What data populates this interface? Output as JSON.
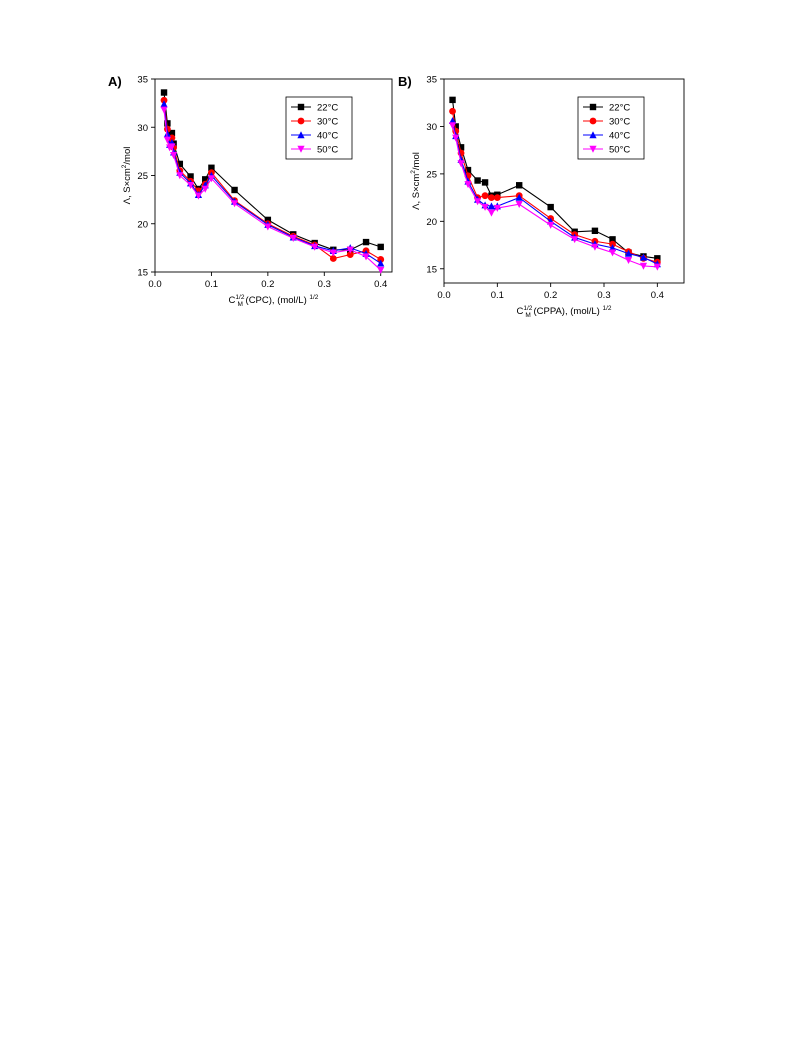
{
  "figure": {
    "panels": [
      {
        "letter": "A)"
      },
      {
        "letter": "B)"
      }
    ]
  },
  "chart_data": [
    {
      "type": "line",
      "panel_label": "A)",
      "xlabel": {
        "main": "C",
        "sub": "M",
        "sup": "1/2",
        "rest": " (CPC), (mol/L) ",
        "rest_sup": "1/2"
      },
      "ylabel": {
        "main": "Λ, S×cm",
        "sup": "2",
        "rest": "/mol"
      },
      "xlim": [
        0.0,
        0.42
      ],
      "ylim": [
        15,
        35
      ],
      "xticks": [
        0.0,
        0.1,
        0.2,
        0.3,
        0.4
      ],
      "xtick_labels": [
        "0.0",
        "0.1",
        "0.2",
        "0.3",
        "0.4"
      ],
      "yticks": [
        15,
        20,
        25,
        30,
        35
      ],
      "ytick_labels": [
        "15",
        "20",
        "25",
        "30",
        "35"
      ],
      "legend_position": "top-right",
      "grid": false,
      "x": [
        0.016,
        0.022,
        0.026,
        0.03,
        0.033,
        0.044,
        0.063,
        0.077,
        0.089,
        0.1,
        0.141,
        0.2,
        0.245,
        0.283,
        0.316,
        0.346,
        0.374,
        0.4
      ],
      "series": [
        {
          "name": "22°C",
          "color": "#000000",
          "marker": "square",
          "values": [
            33.6,
            30.4,
            29.0,
            29.4,
            28.3,
            26.2,
            24.9,
            23.6,
            24.6,
            25.8,
            23.5,
            20.4,
            18.9,
            18.0,
            17.3,
            17.3,
            18.1,
            17.6
          ]
        },
        {
          "name": "30°C",
          "color": "#ff0000",
          "marker": "circle",
          "values": [
            32.8,
            29.8,
            28.6,
            28.9,
            27.9,
            25.5,
            24.4,
            23.4,
            24.1,
            25.3,
            22.4,
            20.0,
            18.7,
            17.8,
            16.4,
            16.8,
            17.2,
            16.3
          ]
        },
        {
          "name": "40°C",
          "color": "#0000ff",
          "marker": "triangle-up",
          "values": [
            32.4,
            29.3,
            28.2,
            28.4,
            27.4,
            25.3,
            24.2,
            23.0,
            24.0,
            25.0,
            22.3,
            19.9,
            18.6,
            17.7,
            17.2,
            17.5,
            16.9,
            15.9
          ]
        },
        {
          "name": "50°C",
          "color": "#ff00ff",
          "marker": "triangle-down",
          "values": [
            31.8,
            28.7,
            27.9,
            28.0,
            27.1,
            25.0,
            24.0,
            22.9,
            23.6,
            24.7,
            22.1,
            19.7,
            18.5,
            17.6,
            17.0,
            17.3,
            16.6,
            15.2
          ]
        }
      ]
    },
    {
      "type": "line",
      "panel_label": "B)",
      "xlabel": {
        "main": "C",
        "sub": "M",
        "sup": "1/2",
        "rest": " (CPPA), (mol/L) ",
        "rest_sup": "1/2"
      },
      "ylabel": {
        "main": "Λ, S×cm",
        "sup": "2",
        "rest": "/mol"
      },
      "xlim": [
        0.0,
        0.45
      ],
      "ylim": [
        13.5,
        35
      ],
      "xticks": [
        0.0,
        0.1,
        0.2,
        0.3,
        0.4
      ],
      "xtick_labels": [
        "0.0",
        "0.1",
        "0.2",
        "0.3",
        "0.4"
      ],
      "yticks": [
        15,
        20,
        25,
        30,
        35
      ],
      "ytick_labels": [
        "15",
        "20",
        "25",
        "30",
        "35"
      ],
      "legend_position": "top-right",
      "grid": false,
      "x": [
        0.016,
        0.022,
        0.032,
        0.045,
        0.063,
        0.077,
        0.089,
        0.1,
        0.141,
        0.2,
        0.245,
        0.283,
        0.316,
        0.346,
        0.374,
        0.4
      ],
      "series": [
        {
          "name": "22°C",
          "color": "#000000",
          "marker": "square",
          "values": [
            32.8,
            30.0,
            27.8,
            25.4,
            24.3,
            24.1,
            22.7,
            22.8,
            23.8,
            21.5,
            18.9,
            19.0,
            18.1,
            16.7,
            16.3,
            16.1
          ]
        },
        {
          "name": "30°C",
          "color": "#ff0000",
          "marker": "circle",
          "values": [
            31.6,
            29.5,
            27.2,
            24.8,
            22.5,
            22.7,
            22.5,
            22.5,
            22.7,
            20.3,
            18.6,
            17.9,
            17.6,
            16.8,
            16.1,
            15.7
          ]
        },
        {
          "name": "40°C",
          "color": "#0000ff",
          "marker": "triangle-up",
          "values": [
            30.6,
            29.0,
            26.5,
            24.2,
            22.3,
            21.7,
            21.6,
            21.6,
            22.5,
            20.0,
            18.3,
            17.6,
            17.2,
            16.6,
            16.2,
            15.5
          ]
        },
        {
          "name": "50°C",
          "color": "#ff00ff",
          "marker": "triangle-down",
          "values": [
            30.1,
            28.8,
            26.1,
            23.9,
            22.1,
            21.5,
            20.9,
            21.4,
            21.8,
            19.6,
            18.1,
            17.3,
            16.7,
            15.9,
            15.3,
            15.2
          ]
        }
      ]
    }
  ]
}
